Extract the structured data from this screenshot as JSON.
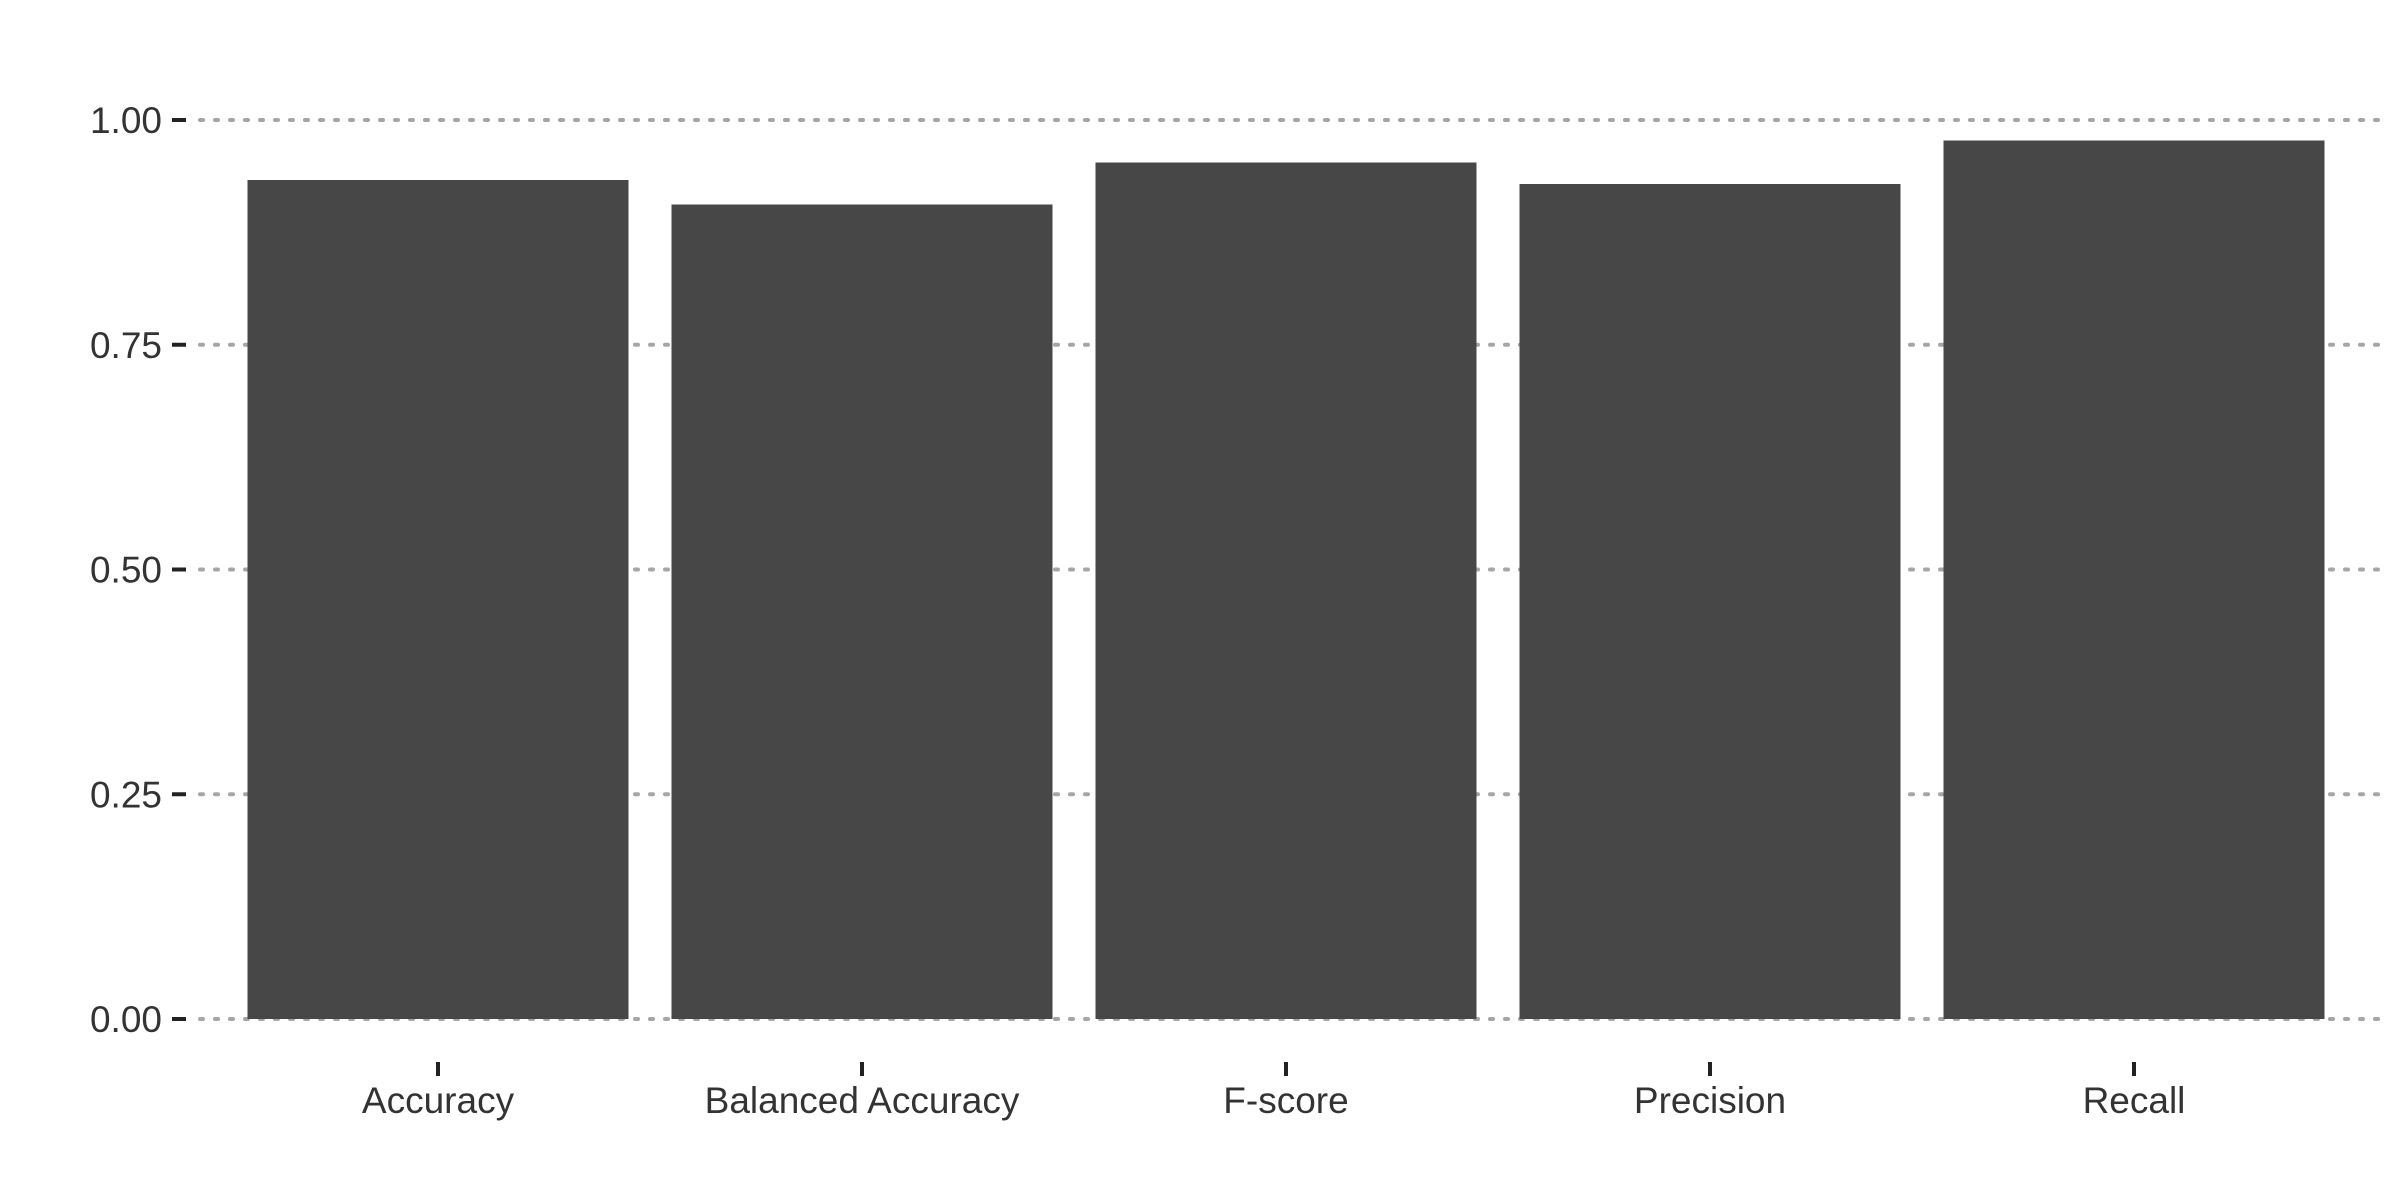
{
  "chart_data": {
    "type": "bar",
    "title": "",
    "xlabel": "",
    "ylabel": "",
    "categories": [
      "Accuracy",
      "Balanced Accuracy",
      "F-score",
      "Precision",
      "Recall"
    ],
    "values": [
      0.933,
      0.906,
      0.953,
      0.929,
      0.977
    ],
    "ylim": [
      0,
      1
    ],
    "yticks": [
      0.0,
      0.25,
      0.5,
      0.75,
      1.0
    ],
    "ytick_labels": [
      "0.00",
      "0.25",
      "0.50",
      "0.75",
      "1.00"
    ],
    "grid": "horizontal-dotted",
    "legend": "none",
    "bar_color": "#474747",
    "grid_color": "#a6a6a6",
    "text_color": "#333333",
    "tick_color": "#222222"
  }
}
